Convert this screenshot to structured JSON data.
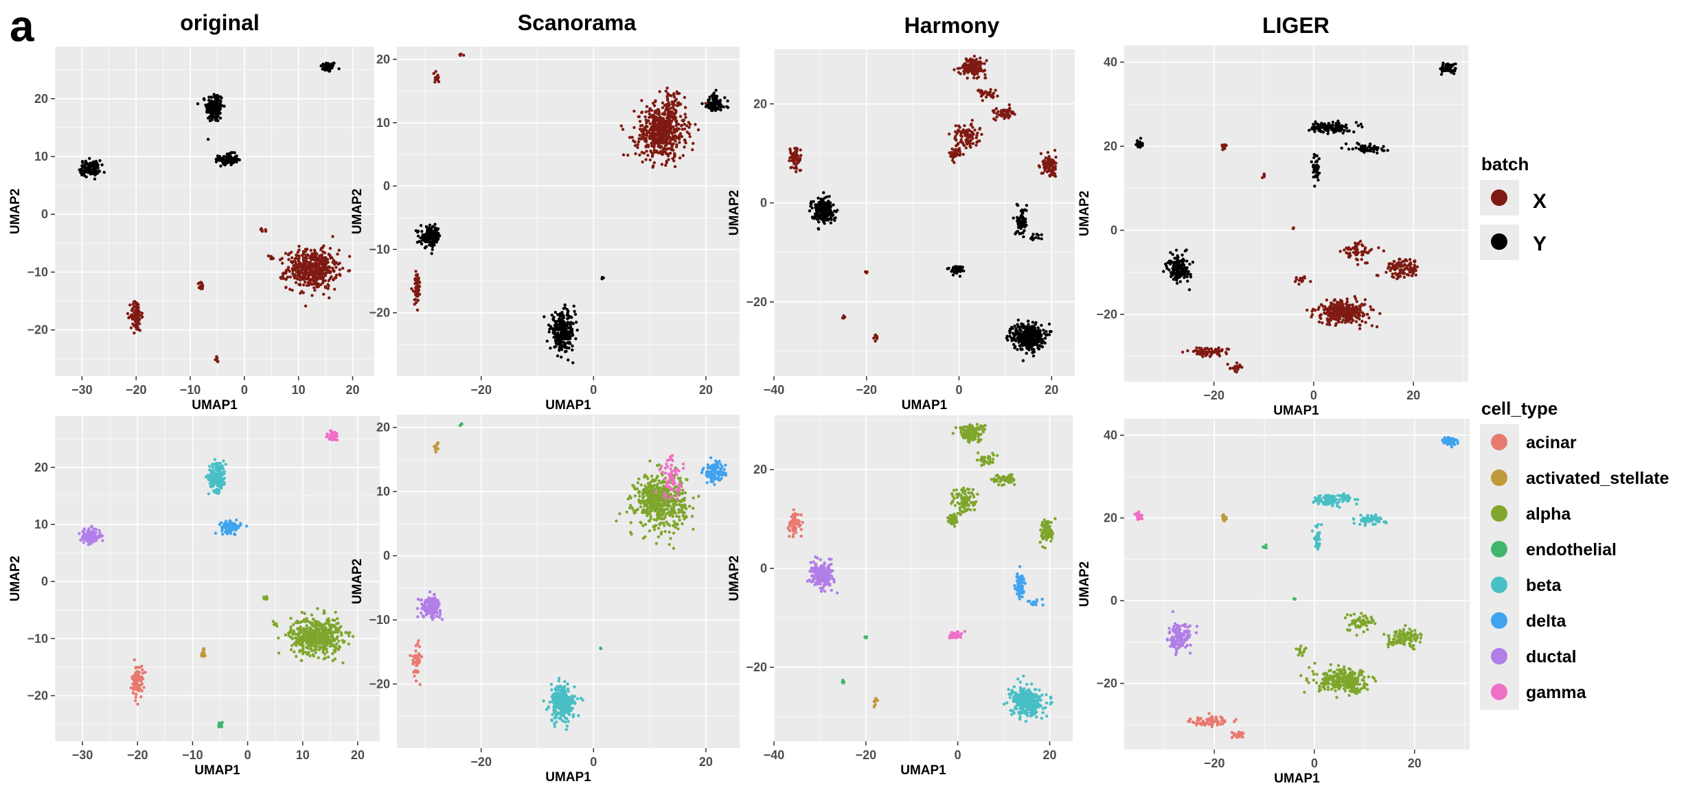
{
  "figure_label": "a",
  "method_titles": [
    "original",
    "Scanorama",
    "Harmony",
    "LIGER"
  ],
  "row_labels": [
    "batch",
    "cell_type"
  ],
  "colors": {
    "X": "#7f1a12",
    "Y": "#000000",
    "acinar": "#e8796e",
    "activated_stellate": "#c09a3a",
    "alpha": "#7fa62c",
    "endothelial": "#3fb66b",
    "beta": "#48bfc4",
    "delta": "#3fa3ef",
    "ductal": "#b17ee8",
    "gamma": "#ef6fc6",
    "panel_bg": "#ebebeb",
    "grid": "#ffffff"
  },
  "legends": {
    "batch": {
      "title": "batch",
      "items": [
        {
          "key": "X",
          "label": "X"
        },
        {
          "key": "Y",
          "label": "Y"
        }
      ]
    },
    "cell_type": {
      "title": "cell_type",
      "items": [
        {
          "key": "acinar",
          "label": "acinar"
        },
        {
          "key": "activated_stellate",
          "label": "activated_stellate"
        },
        {
          "key": "alpha",
          "label": "alpha"
        },
        {
          "key": "endothelial",
          "label": "endothelial"
        },
        {
          "key": "beta",
          "label": "beta"
        },
        {
          "key": "delta",
          "label": "delta"
        },
        {
          "key": "ductal",
          "label": "ductal"
        },
        {
          "key": "gamma",
          "label": "gamma"
        }
      ]
    }
  },
  "chart_data": [
    {
      "type": "scatter",
      "title": "original",
      "xlabel": "UMAP1",
      "ylabel": "UMAP2",
      "xlim": [
        -35,
        24
      ],
      "ylim": [
        -28,
        29
      ],
      "xticks": [
        -30,
        -20,
        -10,
        0,
        10,
        20
      ],
      "yticks": [
        -20,
        -10,
        0,
        10,
        20
      ],
      "clusters": [
        {
          "x": 15.5,
          "y": 25.5,
          "sx": 1.3,
          "sy": 0.8,
          "n": 45,
          "batch": "Y",
          "cell": "gamma"
        },
        {
          "x": -5.5,
          "y": 18.5,
          "sx": 1.4,
          "sy": 2.4,
          "n": 170,
          "batch": "Y",
          "cell": "beta"
        },
        {
          "x": -3.0,
          "y": 9.5,
          "sx": 1.6,
          "sy": 0.9,
          "n": 90,
          "batch": "Y",
          "cell": "delta"
        },
        {
          "x": -28.5,
          "y": 8.0,
          "sx": 1.7,
          "sy": 1.2,
          "n": 110,
          "batch": "Y",
          "cell": "ductal"
        },
        {
          "x": 12.5,
          "y": -9.5,
          "sx": 4.2,
          "sy": 3.0,
          "n": 480,
          "batch": "X",
          "cell": "alpha"
        },
        {
          "x": -20.0,
          "y": -17.5,
          "sx": 0.9,
          "sy": 2.5,
          "n": 90,
          "batch": "X",
          "cell": "acinar"
        },
        {
          "x": -8.0,
          "y": -12.5,
          "sx": 0.4,
          "sy": 0.8,
          "n": 18,
          "batch": "X",
          "cell": "activated_stellate"
        },
        {
          "x": -5.0,
          "y": -25.0,
          "sx": 0.3,
          "sy": 0.5,
          "n": 8,
          "batch": "X",
          "cell": "endothelial"
        },
        {
          "x": 3.5,
          "y": -2.8,
          "sx": 0.6,
          "sy": 0.3,
          "n": 6,
          "batch": "X",
          "cell": "alpha"
        },
        {
          "x": 5.0,
          "y": -7.5,
          "sx": 0.5,
          "sy": 0.5,
          "n": 8,
          "batch": "X",
          "cell": "alpha"
        }
      ]
    },
    {
      "type": "scatter",
      "title": "Scanorama",
      "xlabel": "UMAP1",
      "ylabel": "UMAP2",
      "xlim": [
        -35,
        26
      ],
      "ylim": [
        -30,
        22
      ],
      "xticks": [
        -20,
        0,
        20
      ],
      "yticks": [
        -20,
        -10,
        0,
        10,
        20
      ],
      "clusters": [
        {
          "x": 12.0,
          "y": 8.5,
          "sx": 4.0,
          "sy": 3.8,
          "n": 520,
          "batch": "X",
          "cell": "alpha"
        },
        {
          "x": 14.0,
          "y": 12.0,
          "sx": 2.0,
          "sy": 3.0,
          "n": 70,
          "batch": "X",
          "cell": "gamma"
        },
        {
          "x": 21.5,
          "y": 13.0,
          "sx": 1.8,
          "sy": 1.5,
          "n": 90,
          "batch": "Y",
          "cell": "delta"
        },
        {
          "x": -5.5,
          "y": -23.0,
          "sx": 2.0,
          "sy": 2.6,
          "n": 260,
          "batch": "Y",
          "cell": "beta"
        },
        {
          "x": -29.0,
          "y": -8.0,
          "sx": 1.6,
          "sy": 1.4,
          "n": 150,
          "batch": "Y",
          "cell": "ductal"
        },
        {
          "x": -31.5,
          "y": -16.0,
          "sx": 0.7,
          "sy": 2.5,
          "n": 45,
          "batch": "X",
          "cell": "acinar"
        },
        {
          "x": -28.0,
          "y": 17.0,
          "sx": 0.6,
          "sy": 0.7,
          "n": 14,
          "batch": "X",
          "cell": "activated_stellate"
        },
        {
          "x": -23.5,
          "y": 20.5,
          "sx": 0.3,
          "sy": 0.3,
          "n": 4,
          "batch": "X",
          "cell": "endothelial"
        },
        {
          "x": 1.5,
          "y": -14.5,
          "sx": 0.3,
          "sy": 0.3,
          "n": 3,
          "batch": "Y",
          "cell": "endothelial"
        }
      ]
    },
    {
      "type": "scatter",
      "title": "Harmony",
      "xlabel": "UMAP1",
      "ylabel": "UMAP2",
      "xlim": [
        -40,
        25
      ],
      "ylim": [
        -35,
        31
      ],
      "xticks": [
        -40,
        -20,
        0,
        20
      ],
      "yticks": [
        -20,
        0,
        20
      ],
      "clusters": [
        {
          "x": 3.0,
          "y": 27.5,
          "sx": 2.5,
          "sy": 1.5,
          "n": 140,
          "batch": "X",
          "cell": "alpha"
        },
        {
          "x": 1.5,
          "y": 13.5,
          "sx": 2.5,
          "sy": 2.5,
          "n": 90,
          "batch": "X",
          "cell": "alpha"
        },
        {
          "x": 10.0,
          "y": 18.0,
          "sx": 2.2,
          "sy": 1.0,
          "n": 60,
          "batch": "X",
          "cell": "alpha"
        },
        {
          "x": 6.0,
          "y": 22.0,
          "sx": 2.0,
          "sy": 1.0,
          "n": 30,
          "batch": "X",
          "cell": "alpha"
        },
        {
          "x": -1.0,
          "y": 10.0,
          "sx": 1.0,
          "sy": 1.2,
          "n": 40,
          "batch": "X",
          "cell": "alpha"
        },
        {
          "x": 19.5,
          "y": 7.5,
          "sx": 1.3,
          "sy": 2.2,
          "n": 90,
          "batch": "X",
          "cell": "alpha"
        },
        {
          "x": 13.5,
          "y": -3.5,
          "sx": 1.0,
          "sy": 2.5,
          "n": 70,
          "batch": "Y",
          "cell": "delta"
        },
        {
          "x": 17.0,
          "y": -7.0,
          "sx": 1.8,
          "sy": 0.8,
          "n": 12,
          "batch": "Y",
          "cell": "delta"
        },
        {
          "x": 15.0,
          "y": -27.0,
          "sx": 3.0,
          "sy": 2.5,
          "n": 350,
          "batch": "Y",
          "cell": "beta"
        },
        {
          "x": -29.5,
          "y": -1.5,
          "sx": 2.2,
          "sy": 2.2,
          "n": 200,
          "batch": "Y",
          "cell": "ductal"
        },
        {
          "x": -35.5,
          "y": 9.0,
          "sx": 1.3,
          "sy": 2.5,
          "n": 60,
          "batch": "X",
          "cell": "acinar"
        },
        {
          "x": -0.5,
          "y": -13.5,
          "sx": 1.3,
          "sy": 0.7,
          "n": 40,
          "batch": "Y",
          "cell": "gamma"
        },
        {
          "x": -18.0,
          "y": -27.0,
          "sx": 0.4,
          "sy": 0.6,
          "n": 10,
          "batch": "X",
          "cell": "activated_stellate"
        },
        {
          "x": -25.0,
          "y": -23.0,
          "sx": 0.3,
          "sy": 0.3,
          "n": 6,
          "batch": "X",
          "cell": "endothelial"
        },
        {
          "x": -20.0,
          "y": -14.0,
          "sx": 0.3,
          "sy": 0.3,
          "n": 4,
          "batch": "X",
          "cell": "endothelial"
        }
      ]
    },
    {
      "type": "scatter",
      "title": "LIGER",
      "xlabel": "UMAP1",
      "ylabel": "UMAP2",
      "xlim": [
        -38,
        31
      ],
      "ylim": [
        -36,
        44
      ],
      "xticks": [
        -20,
        0,
        20
      ],
      "yticks": [
        -20,
        0,
        20,
        40
      ],
      "clusters": [
        {
          "x": 27.0,
          "y": 38.5,
          "sx": 1.3,
          "sy": 1.0,
          "n": 70,
          "batch": "Y",
          "cell": "delta"
        },
        {
          "x": 3.5,
          "y": 24.5,
          "sx": 3.5,
          "sy": 1.2,
          "n": 110,
          "batch": "Y",
          "cell": "beta"
        },
        {
          "x": 11.0,
          "y": 19.5,
          "sx": 3.0,
          "sy": 1.0,
          "n": 60,
          "batch": "Y",
          "cell": "beta"
        },
        {
          "x": 0.5,
          "y": 15.0,
          "sx": 0.6,
          "sy": 2.5,
          "n": 40,
          "batch": "Y",
          "cell": "beta"
        },
        {
          "x": -35.0,
          "y": 20.5,
          "sx": 0.6,
          "sy": 0.8,
          "n": 30,
          "batch": "Y",
          "cell": "gamma"
        },
        {
          "x": -27.0,
          "y": -9.0,
          "sx": 2.0,
          "sy": 3.0,
          "n": 140,
          "batch": "Y",
          "cell": "ductal"
        },
        {
          "x": 6.0,
          "y": -19.5,
          "sx": 5.0,
          "sy": 2.5,
          "n": 280,
          "batch": "X",
          "cell": "alpha"
        },
        {
          "x": 18.0,
          "y": -9.0,
          "sx": 3.0,
          "sy": 2.0,
          "n": 110,
          "batch": "X",
          "cell": "alpha"
        },
        {
          "x": 9.0,
          "y": -5.0,
          "sx": 3.0,
          "sy": 2.0,
          "n": 60,
          "batch": "X",
          "cell": "alpha"
        },
        {
          "x": -2.5,
          "y": -12.0,
          "sx": 1.2,
          "sy": 1.0,
          "n": 15,
          "batch": "X",
          "cell": "alpha"
        },
        {
          "x": -21.0,
          "y": -29.0,
          "sx": 3.5,
          "sy": 1.0,
          "n": 70,
          "batch": "X",
          "cell": "acinar"
        },
        {
          "x": -15.5,
          "y": -32.5,
          "sx": 1.2,
          "sy": 1.0,
          "n": 20,
          "batch": "X",
          "cell": "acinar"
        },
        {
          "x": -18.0,
          "y": 20.0,
          "sx": 0.5,
          "sy": 0.6,
          "n": 12,
          "batch": "X",
          "cell": "activated_stellate"
        },
        {
          "x": -10.0,
          "y": 13.0,
          "sx": 0.5,
          "sy": 0.4,
          "n": 5,
          "batch": "X",
          "cell": "endothelial"
        },
        {
          "x": -4.0,
          "y": 0.5,
          "sx": 0.3,
          "sy": 0.3,
          "n": 3,
          "batch": "X",
          "cell": "endothelial"
        }
      ]
    }
  ]
}
